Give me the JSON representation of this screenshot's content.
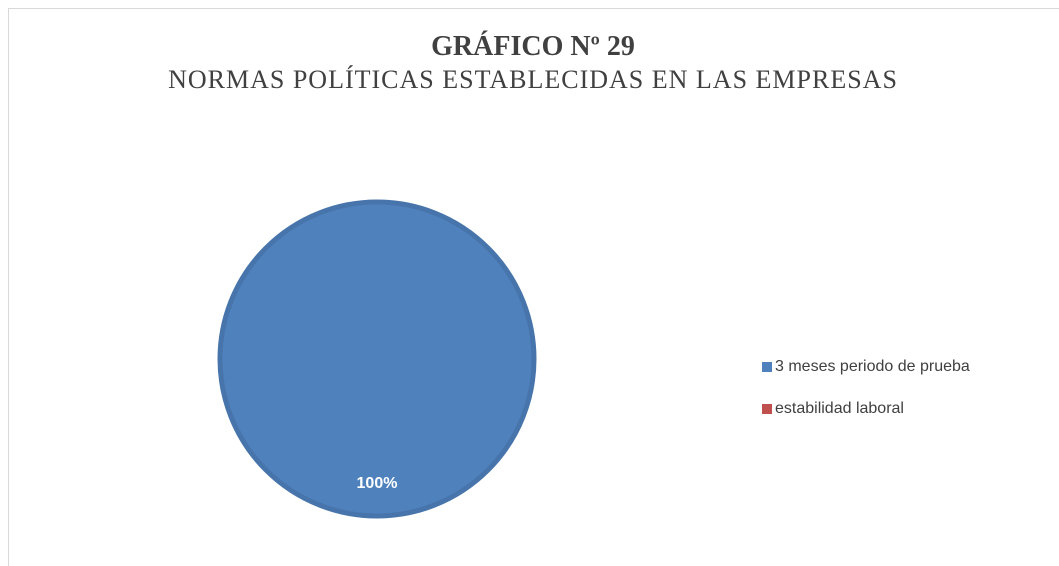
{
  "chart_data": {
    "type": "pie",
    "title": "GRÁFICO Nº 29",
    "subtitle": "NORMAS POLÍTICAS ESTABLECIDAS EN LAS EMPRESAS",
    "categories": [
      "3 meses periodo de prueba",
      "estabilidad laboral"
    ],
    "values": [
      100,
      0
    ],
    "value_labels": [
      "100%",
      null
    ],
    "colors": [
      "#4f81bd",
      "#c0504d"
    ],
    "legend": "right"
  }
}
